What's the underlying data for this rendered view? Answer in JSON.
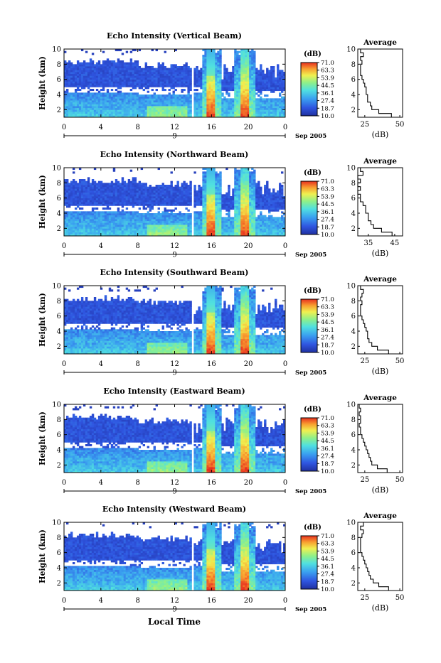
{
  "figure": {
    "xlabel": "Local Time",
    "date_label": "Sep 2005",
    "day_label": "9"
  },
  "colorbar": {
    "title": "(dB)",
    "ticks": [
      "71.0",
      "63.3",
      "53.9",
      "44.5",
      "36.1",
      "27.4",
      "18.7",
      "10.0"
    ],
    "range": [
      10.0,
      71.0
    ],
    "colors": [
      "#2030a0",
      "#2f55e0",
      "#3aa0f0",
      "#50e0e0",
      "#8ef08a",
      "#f0f050",
      "#f8a030",
      "#e83020"
    ]
  },
  "chart_data": [
    {
      "type": "heatmap",
      "title": "Echo Intensity (Vertical Beam)",
      "ylabel": "Height (km)",
      "x_ticks": [
        "0",
        "4",
        "8",
        "12",
        "16",
        "20",
        "0"
      ],
      "y_ticks": [
        "2",
        "4",
        "6",
        "8",
        "10"
      ],
      "xlim": [
        0,
        24
      ],
      "ylim": [
        1,
        10
      ],
      "z_range": [
        10.0,
        71.0
      ],
      "gap_hours": [
        14.0
      ],
      "rain_hours": [
        16.0,
        19.6
      ],
      "profile": {
        "title": "Average",
        "xlabel": "(dB)",
        "x_ticks": [
          "25",
          "50"
        ],
        "y_ticks": [
          "2",
          "4",
          "6",
          "8",
          "10"
        ],
        "xlim": [
          20,
          52
        ],
        "heights": [
          1.0,
          1.5,
          2.0,
          2.5,
          3.0,
          3.5,
          4.0,
          4.5,
          5.0,
          5.5,
          6.0,
          6.5,
          7.0,
          7.5,
          8.0,
          8.5,
          9.0,
          9.5,
          10.0
        ],
        "values": [
          50,
          44,
          35,
          30,
          29,
          27,
          27,
          26,
          26,
          25,
          24,
          23,
          22,
          22,
          22,
          23,
          22,
          24,
          22
        ]
      }
    },
    {
      "type": "heatmap",
      "title": "Echo Intensity (Northward Beam)",
      "ylabel": "Height (km)",
      "x_ticks": [
        "0",
        "4",
        "8",
        "12",
        "16",
        "20",
        "0"
      ],
      "y_ticks": [
        "2",
        "4",
        "6",
        "8",
        "10"
      ],
      "xlim": [
        0,
        24
      ],
      "ylim": [
        1,
        10
      ],
      "z_range": [
        10.0,
        71.0
      ],
      "gap_hours": [
        14.0
      ],
      "rain_hours": [
        16.0,
        19.6
      ],
      "profile": {
        "title": "Average",
        "xlabel": "(dB)",
        "x_ticks": [
          "35",
          "45"
        ],
        "y_ticks": [
          "2",
          "4",
          "6",
          "8",
          "10"
        ],
        "xlim": [
          31,
          48
        ],
        "heights": [
          1.0,
          1.5,
          2.0,
          2.5,
          3.0,
          3.5,
          4.0,
          4.5,
          5.0,
          5.5,
          6.0,
          6.5,
          7.0,
          7.5,
          8.0,
          8.5,
          9.0,
          9.5,
          10.0
        ],
        "values": [
          48,
          44,
          40,
          37,
          36,
          35,
          35,
          34,
          34,
          33,
          32,
          32,
          31,
          32,
          31,
          32,
          31,
          33,
          32
        ]
      }
    },
    {
      "type": "heatmap",
      "title": "Echo Intensity (Southward Beam)",
      "ylabel": "Height (km)",
      "x_ticks": [
        "0",
        "4",
        "8",
        "12",
        "16",
        "20",
        "0"
      ],
      "y_ticks": [
        "2",
        "4",
        "6",
        "8",
        "10"
      ],
      "xlim": [
        0,
        24
      ],
      "ylim": [
        1,
        10
      ],
      "z_range": [
        10.0,
        71.0
      ],
      "gap_hours": [
        14.0
      ],
      "rain_hours": [
        16.0,
        19.6
      ],
      "profile": {
        "title": "Average",
        "xlabel": "(dB)",
        "x_ticks": [
          "25",
          "50"
        ],
        "y_ticks": [
          "2",
          "4",
          "6",
          "8",
          "10"
        ],
        "xlim": [
          20,
          52
        ],
        "heights": [
          1.0,
          1.5,
          2.0,
          2.5,
          3.0,
          3.5,
          4.0,
          4.5,
          5.0,
          5.5,
          6.0,
          6.5,
          7.0,
          7.5,
          8.0,
          8.5,
          9.0,
          9.5,
          10.0
        ],
        "values": [
          50,
          42,
          34,
          30,
          28,
          27,
          27,
          26,
          25,
          24,
          23,
          22,
          22,
          22,
          23,
          22,
          23,
          24,
          22
        ]
      }
    },
    {
      "type": "heatmap",
      "title": "Echo Intensity (Eastward Beam)",
      "ylabel": "Height (km)",
      "x_ticks": [
        "0",
        "4",
        "8",
        "12",
        "16",
        "20",
        "0"
      ],
      "y_ticks": [
        "2",
        "4",
        "6",
        "8",
        "10"
      ],
      "xlim": [
        0,
        24
      ],
      "ylim": [
        1,
        10
      ],
      "z_range": [
        10.0,
        71.0
      ],
      "gap_hours": [
        14.0
      ],
      "rain_hours": [
        16.0,
        19.6
      ],
      "profile": {
        "title": "Average",
        "xlabel": "(dB)",
        "x_ticks": [
          "25",
          "50"
        ],
        "y_ticks": [
          "2",
          "4",
          "6",
          "8",
          "10"
        ],
        "xlim": [
          20,
          52
        ],
        "heights": [
          1.0,
          1.5,
          2.0,
          2.5,
          3.0,
          3.5,
          4.0,
          4.5,
          5.0,
          5.5,
          6.0,
          6.5,
          7.0,
          7.5,
          8.0,
          8.5,
          9.0,
          9.5,
          10.0
        ],
        "values": [
          50,
          41,
          34,
          30,
          29,
          28,
          27,
          26,
          25,
          24,
          23,
          22,
          22,
          21,
          22,
          22,
          21,
          22,
          21
        ]
      }
    },
    {
      "type": "heatmap",
      "title": "Echo Intensity (Westward Beam)",
      "ylabel": "Height (km)",
      "x_ticks": [
        "0",
        "4",
        "8",
        "12",
        "16",
        "20",
        "0"
      ],
      "y_ticks": [
        "2",
        "4",
        "6",
        "8",
        "10"
      ],
      "xlim": [
        0,
        24
      ],
      "ylim": [
        1,
        10
      ],
      "z_range": [
        10.0,
        71.0
      ],
      "gap_hours": [
        14.0
      ],
      "rain_hours": [
        16.0,
        19.6
      ],
      "profile": {
        "title": "Average",
        "xlabel": "(dB)",
        "x_ticks": [
          "25",
          "50"
        ],
        "y_ticks": [
          "2",
          "4",
          "6",
          "8",
          "10"
        ],
        "xlim": [
          20,
          52
        ],
        "heights": [
          1.0,
          1.5,
          2.0,
          2.5,
          3.0,
          3.5,
          4.0,
          4.5,
          5.0,
          5.5,
          6.0,
          6.5,
          7.0,
          7.5,
          8.0,
          8.5,
          9.0,
          9.5,
          10.0
        ],
        "values": [
          50,
          42,
          35,
          31,
          29,
          28,
          27,
          26,
          25,
          24,
          23,
          22,
          22,
          22,
          22,
          23,
          24,
          22,
          24
        ]
      }
    }
  ]
}
